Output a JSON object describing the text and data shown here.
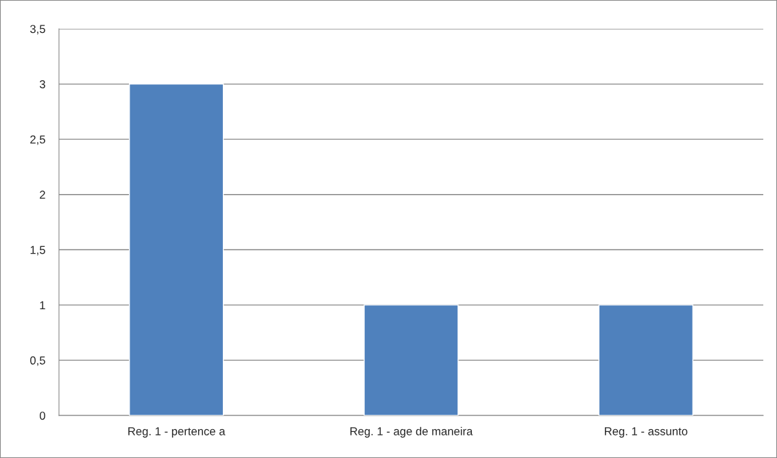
{
  "chart_data": {
    "type": "bar",
    "categories": [
      "Reg. 1 - pertence a",
      "Reg. 1 - age de maneira",
      "Reg. 1 - assunto"
    ],
    "values": [
      3,
      1,
      1
    ],
    "color": "#4f81bd",
    "ylim": [
      0,
      3.5
    ],
    "yticks": [
      0,
      {
        "value": 0.5,
        "label": "0,5"
      },
      1,
      {
        "value": 1.5,
        "label": "1,5"
      },
      2,
      {
        "value": 2.5,
        "label": "2,5"
      },
      3,
      {
        "value": 3.5,
        "label": "3,5"
      }
    ],
    "grid": "y",
    "legend": false
  }
}
